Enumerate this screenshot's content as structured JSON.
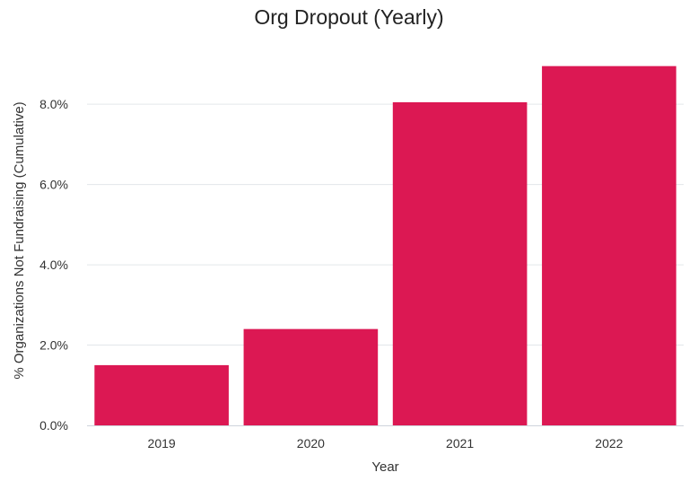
{
  "chart_data": {
    "type": "bar",
    "title": "Org Dropout (Yearly)",
    "xlabel": "Year",
    "ylabel": "% Organizations Not Fundraising (Cumulative)",
    "categories": [
      "2019",
      "2020",
      "2021",
      "2022"
    ],
    "values": [
      1.5,
      2.4,
      8.05,
      8.95
    ],
    "ylim": [
      0,
      9.3
    ],
    "yticks": [
      0,
      2,
      4,
      6,
      8
    ],
    "ytick_labels": [
      "0.0%",
      "2.0%",
      "4.0%",
      "6.0%",
      "8.0%"
    ],
    "grid": true,
    "bar_color": "#DC1853"
  }
}
